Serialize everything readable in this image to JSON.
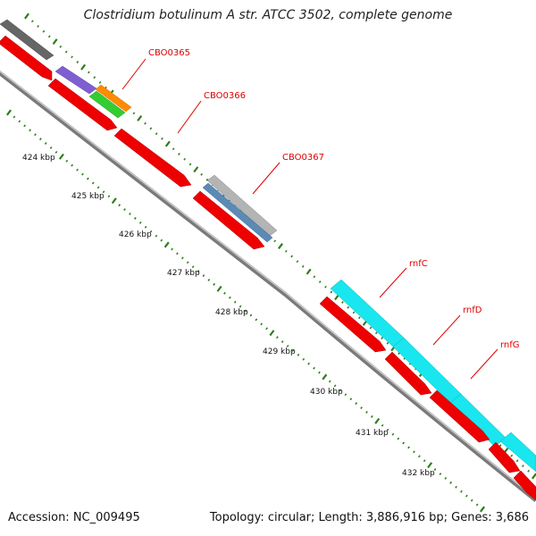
{
  "title": "Clostridium botulinum A str. ATCC 3502, complete genome",
  "footer": {
    "accession": "Accession: NC_009495",
    "summary": "Topology: circular; Length: 3,886,916 bp; Genes: 3,686"
  },
  "scale_labels": [
    "424 kbp",
    "425 kbp",
    "426 kbp",
    "427 kbp",
    "428 kbp",
    "429 kbp",
    "430 kbp",
    "431 kbp",
    "432 kbp"
  ],
  "genes": [
    {
      "id": "gene-cbo0365",
      "label": "CBO0365"
    },
    {
      "id": "gene-cbo0366",
      "label": "CBO0366"
    },
    {
      "id": "gene-cbo0367",
      "label": "CBO0367"
    },
    {
      "id": "gene-rnfc",
      "label": "rnfC"
    },
    {
      "id": "gene-rnfd",
      "label": "rnfD"
    },
    {
      "id": "gene-rnfg",
      "label": "rnfG"
    }
  ],
  "colors": {
    "cds": "#ee0000",
    "backbone": "#888888",
    "tick": "#2e7d1a",
    "label": "#e00000",
    "rna_gray": "#666666",
    "purple": "#7f5fd0",
    "orange": "#ff8c00",
    "green": "#33cc33",
    "blue_gray": "#5b8ab5",
    "cyan": "#19e6ee"
  }
}
